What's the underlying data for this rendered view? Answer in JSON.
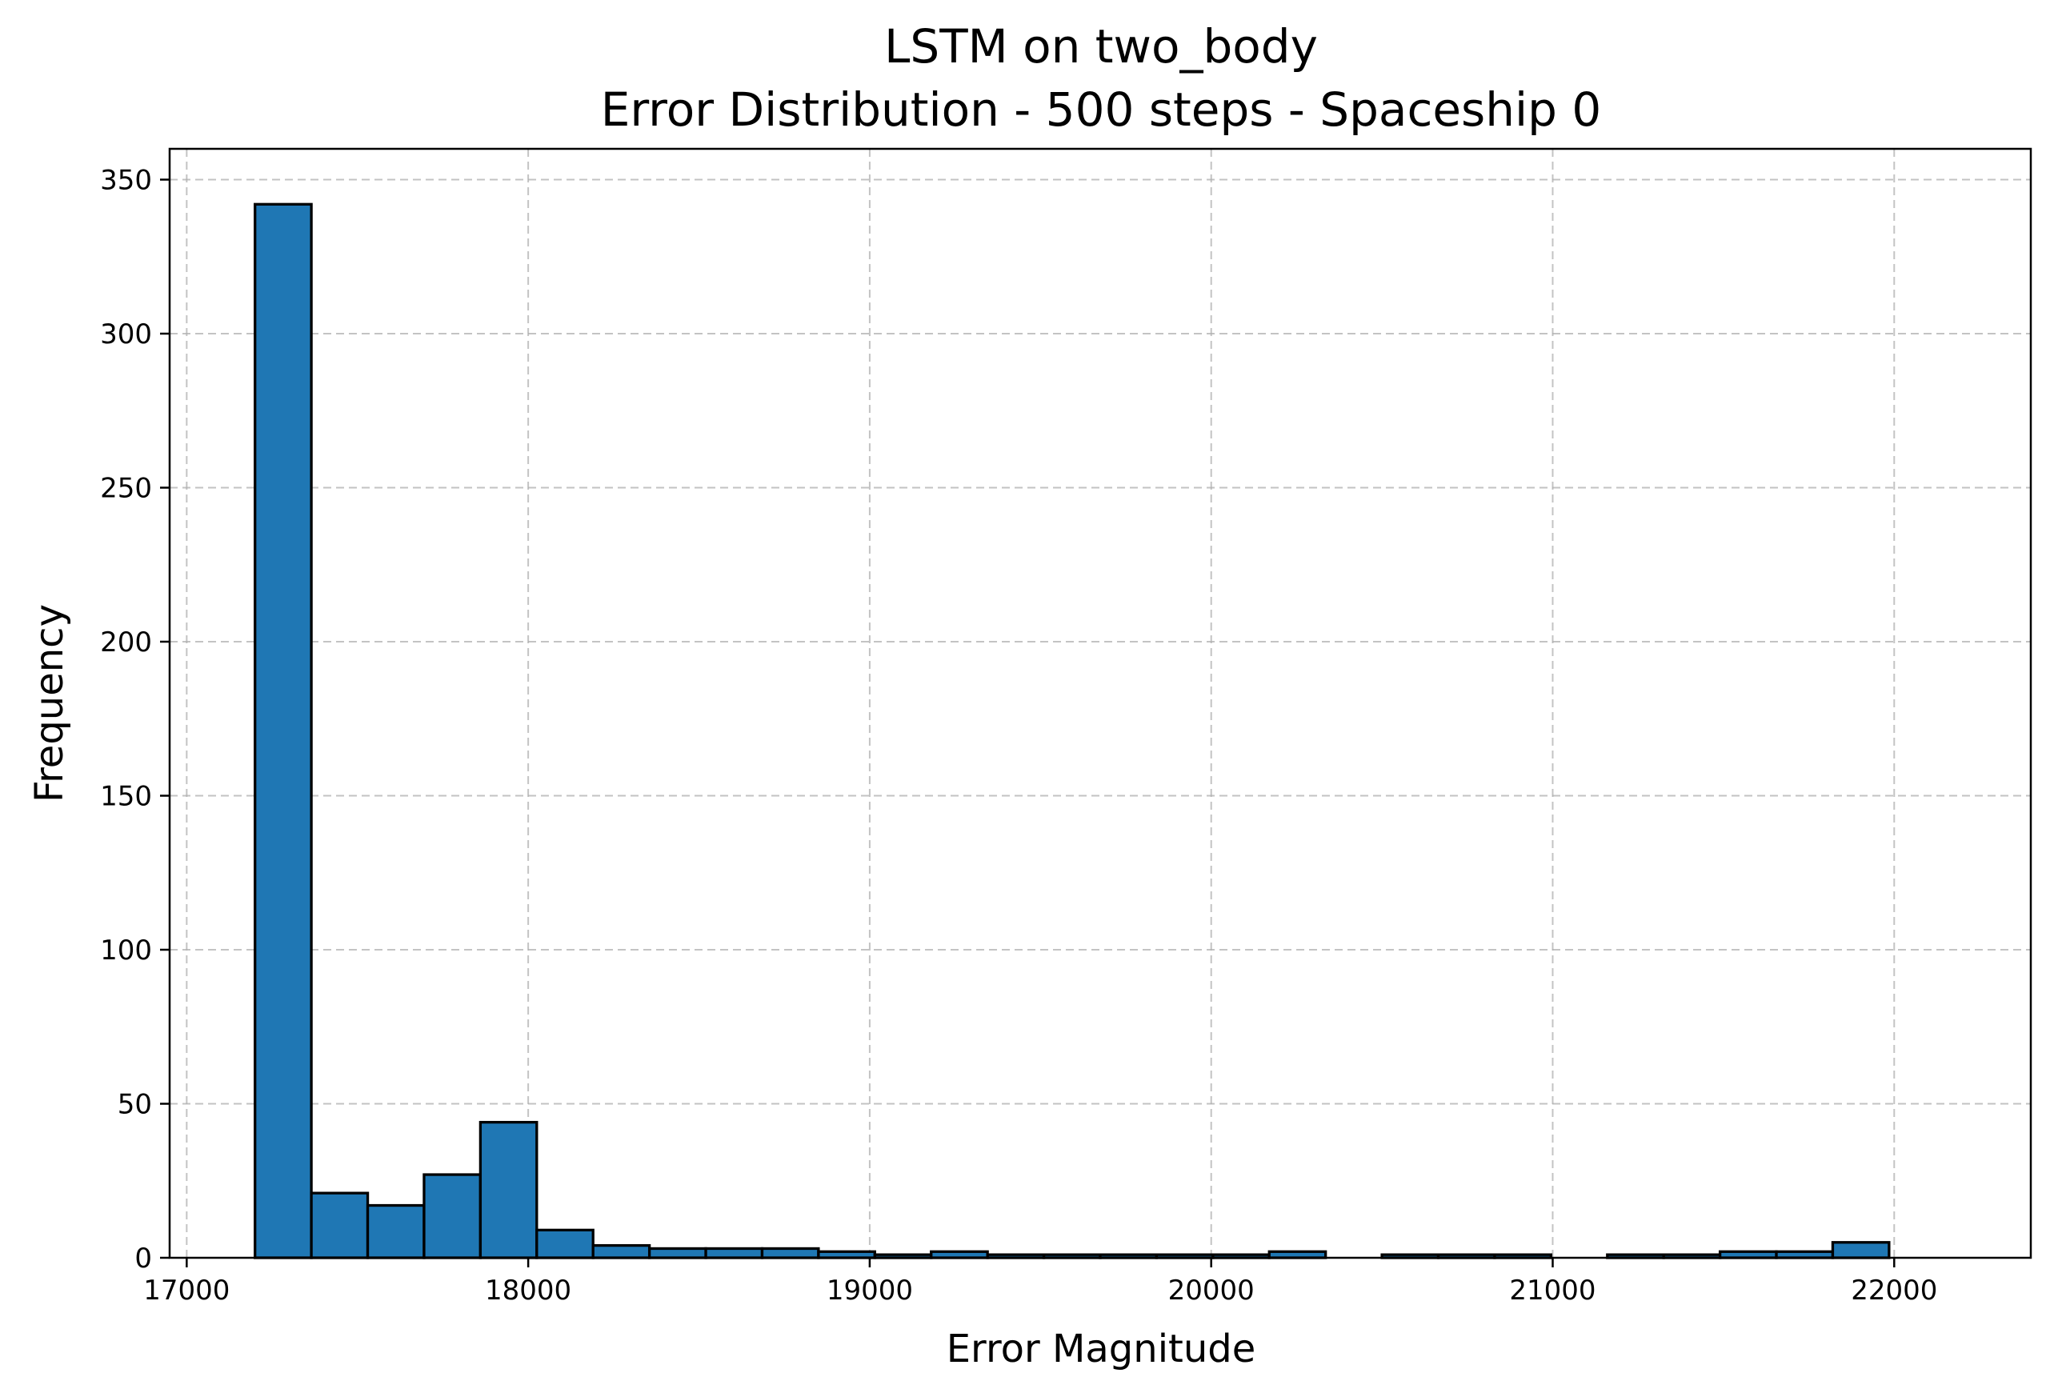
{
  "chart_data": {
    "type": "bar",
    "title_line1": "LSTM on two_body",
    "title_line2": "Error Distribution - 500 steps - Spaceship 0",
    "xlabel": "Error Magnitude",
    "ylabel": "Frequency",
    "xlim": [
      16950,
      22400
    ],
    "ylim": [
      0,
      360
    ],
    "xticks": [
      17000,
      18000,
      19000,
      20000,
      21000,
      22000
    ],
    "yticks": [
      0,
      50,
      100,
      150,
      200,
      250,
      300,
      350
    ],
    "grid": true,
    "bar_color": "#1f77b4",
    "edge_color": "#000000",
    "bin_start": 17200,
    "bin_width": 165,
    "values": [
      342,
      21,
      17,
      27,
      44,
      9,
      4,
      3,
      3,
      3,
      2,
      1,
      2,
      1,
      1,
      1,
      1,
      1,
      2,
      0,
      1,
      1,
      1,
      0,
      1,
      1,
      2,
      2,
      5
    ]
  }
}
